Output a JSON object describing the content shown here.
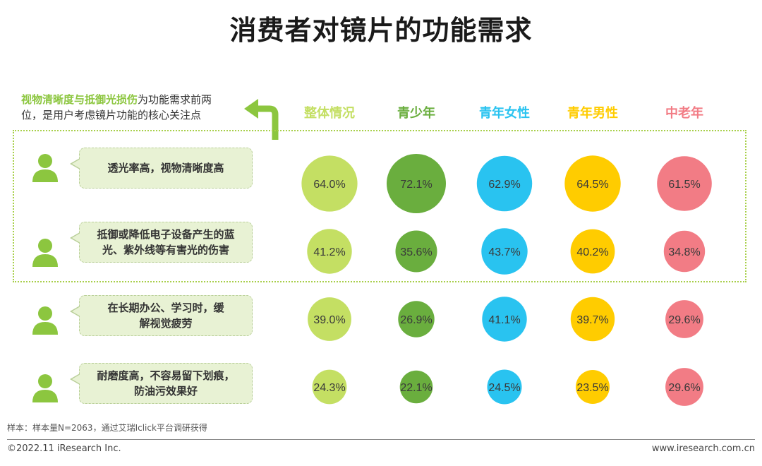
{
  "title": "消费者对镜片的功能需求",
  "note": {
    "highlight": "视物清晰度与抵御光损伤",
    "line1_rest": "为功能需求前两",
    "line2": "位，是用户考虑镜片功能的核心关注点"
  },
  "sample_note": "样本：样本量N=2063，通过艾瑞Iclick平台调研获得",
  "footer": {
    "copyright": "©2022.11 iResearch Inc.",
    "website": "www.iresearch.com.cn"
  },
  "colors": {
    "整体情况": "#c4df63",
    "青少年": "#6aae3e",
    "青年女性": "#29c3f0",
    "青年男性": "#ffcc00",
    "中老年": "#f27c85"
  },
  "rows": [
    {
      "label_line1": "透光率高，视物清晰度高",
      "label_line2": ""
    },
    {
      "label_line1": "抵御或降低电子设备产生的蓝",
      "label_line2": "光、紫外线等有害光的伤害"
    },
    {
      "label_line1": "在长期办公、学习时，缓",
      "label_line2": "解视觉疲劳"
    },
    {
      "label_line1": "耐磨度高，不容易留下划痕，",
      "label_line2": "防油污效果好"
    }
  ],
  "chart_data": {
    "type": "bubble-matrix",
    "title": "消费者对镜片的功能需求",
    "unit": "%",
    "categories": [
      "透光率高，视物清晰度高",
      "抵御或降低电子设备产生的蓝光、紫外线等有害光的伤害",
      "在长期办公、学习时，缓解视觉疲劳",
      "耐磨度高，不容易留下划痕，防油污效果好"
    ],
    "series": [
      {
        "name": "整体情况",
        "values": [
          64.0,
          41.2,
          39.0,
          24.3
        ],
        "labels": [
          "64.0%",
          "41.2%",
          "39.0%",
          "24.3%"
        ]
      },
      {
        "name": "青少年",
        "values": [
          72.1,
          35.6,
          26.9,
          22.1
        ],
        "labels": [
          "72.1%",
          "35.6%",
          "26.9%",
          "22.1%"
        ]
      },
      {
        "name": "青年女性",
        "values": [
          62.9,
          43.7,
          41.1,
          24.5
        ],
        "labels": [
          "62.9%",
          "43.7%",
          "41.1%",
          "24.5%"
        ]
      },
      {
        "name": "青年男性",
        "values": [
          64.5,
          40.2,
          39.7,
          23.5
        ],
        "labels": [
          "64.5%",
          "40.2%",
          "39.7%",
          "23.5%"
        ]
      },
      {
        "name": "中老年",
        "values": [
          61.5,
          34.8,
          29.6,
          29.6
        ],
        "labels": [
          "61.5%",
          "34.8%",
          "29.6%",
          "29.6%"
        ]
      }
    ]
  }
}
